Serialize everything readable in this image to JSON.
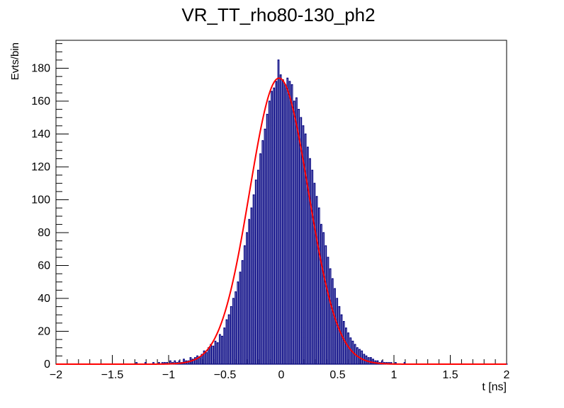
{
  "chart_data": {
    "type": "histogram",
    "title": "VR_TT_rho80-130_ph2",
    "xlabel": "t [ns]",
    "ylabel": "Evts/bin",
    "xlim": [
      -2,
      2
    ],
    "ylim": [
      0,
      197
    ],
    "xticks": [
      -2,
      -1.5,
      -1,
      -0.5,
      0,
      0.5,
      1,
      1.5,
      2
    ],
    "xtick_labels": [
      "−2",
      "−1.5",
      "−1",
      "−0.5",
      "0",
      "0.5",
      "1",
      "1.5",
      "2"
    ],
    "yticks": [
      0,
      20,
      40,
      60,
      80,
      100,
      120,
      140,
      160,
      180
    ],
    "bin_width": 0.01,
    "bins": [
      [
        -2.0,
        0
      ],
      [
        -1.29,
        1
      ],
      [
        -1.21,
        1
      ],
      [
        -1.14,
        1
      ],
      [
        -1.09,
        1
      ],
      [
        -1.06,
        1
      ],
      [
        -1.04,
        1
      ],
      [
        -1.02,
        1
      ],
      [
        -0.99,
        2
      ],
      [
        -0.97,
        1
      ],
      [
        -0.95,
        2
      ],
      [
        -0.93,
        1
      ],
      [
        -0.91,
        2
      ],
      [
        -0.89,
        1
      ],
      [
        -0.87,
        3
      ],
      [
        -0.85,
        2
      ],
      [
        -0.83,
        2
      ],
      [
        -0.81,
        4
      ],
      [
        -0.79,
        3
      ],
      [
        -0.77,
        4
      ],
      [
        -0.75,
        5
      ],
      [
        -0.73,
        4
      ],
      [
        -0.71,
        6
      ],
      [
        -0.69,
        8
      ],
      [
        -0.67,
        7
      ],
      [
        -0.65,
        10
      ],
      [
        -0.63,
        12
      ],
      [
        -0.61,
        11
      ],
      [
        -0.59,
        14
      ],
      [
        -0.57,
        13
      ],
      [
        -0.55,
        18
      ],
      [
        -0.53,
        17
      ],
      [
        -0.51,
        22
      ],
      [
        -0.49,
        27
      ],
      [
        -0.47,
        30
      ],
      [
        -0.45,
        35
      ],
      [
        -0.43,
        40
      ],
      [
        -0.41,
        44
      ],
      [
        -0.39,
        50
      ],
      [
        -0.37,
        56
      ],
      [
        -0.35,
        63
      ],
      [
        -0.33,
        72
      ],
      [
        -0.31,
        80
      ],
      [
        -0.29,
        88
      ],
      [
        -0.27,
        95
      ],
      [
        -0.25,
        103
      ],
      [
        -0.23,
        112
      ],
      [
        -0.21,
        118
      ],
      [
        -0.19,
        128
      ],
      [
        -0.17,
        136
      ],
      [
        -0.15,
        143
      ],
      [
        -0.13,
        152
      ],
      [
        -0.11,
        160
      ],
      [
        -0.09,
        166
      ],
      [
        -0.07,
        168
      ],
      [
        -0.05,
        172
      ],
      [
        -0.03,
        185
      ],
      [
        -0.01,
        176
      ],
      [
        0.01,
        173
      ],
      [
        0.03,
        170
      ],
      [
        0.05,
        174
      ],
      [
        0.07,
        172
      ],
      [
        0.09,
        170
      ],
      [
        0.11,
        160
      ],
      [
        0.13,
        162
      ],
      [
        0.15,
        155
      ],
      [
        0.17,
        150
      ],
      [
        0.19,
        145
      ],
      [
        0.21,
        140
      ],
      [
        0.23,
        132
      ],
      [
        0.25,
        125
      ],
      [
        0.27,
        118
      ],
      [
        0.29,
        110
      ],
      [
        0.31,
        102
      ],
      [
        0.33,
        95
      ],
      [
        0.35,
        85
      ],
      [
        0.37,
        80
      ],
      [
        0.39,
        72
      ],
      [
        0.41,
        65
      ],
      [
        0.43,
        58
      ],
      [
        0.45,
        52
      ],
      [
        0.47,
        46
      ],
      [
        0.49,
        40
      ],
      [
        0.51,
        35
      ],
      [
        0.53,
        30
      ],
      [
        0.55,
        26
      ],
      [
        0.57,
        22
      ],
      [
        0.59,
        19
      ],
      [
        0.61,
        16
      ],
      [
        0.63,
        14
      ],
      [
        0.65,
        12
      ],
      [
        0.67,
        10
      ],
      [
        0.69,
        9
      ],
      [
        0.71,
        8
      ],
      [
        0.73,
        6
      ],
      [
        0.75,
        5
      ],
      [
        0.77,
        4
      ],
      [
        0.79,
        4
      ],
      [
        0.81,
        3
      ],
      [
        0.83,
        2
      ],
      [
        0.85,
        2
      ],
      [
        0.87,
        1
      ],
      [
        0.89,
        2
      ],
      [
        0.91,
        1
      ],
      [
        0.93,
        1
      ],
      [
        0.95,
        1
      ],
      [
        0.97,
        1
      ],
      [
        1.01,
        1
      ],
      [
        1.09,
        1
      ],
      [
        2.0,
        0
      ]
    ],
    "series": [
      {
        "kind": "histogram",
        "color": "#000080"
      },
      {
        "kind": "gaussian_fit",
        "color": "#ff0000",
        "amplitude": 174,
        "mean": -0.02,
        "sigma": 0.26
      }
    ],
    "grid": false,
    "legend": "none"
  }
}
